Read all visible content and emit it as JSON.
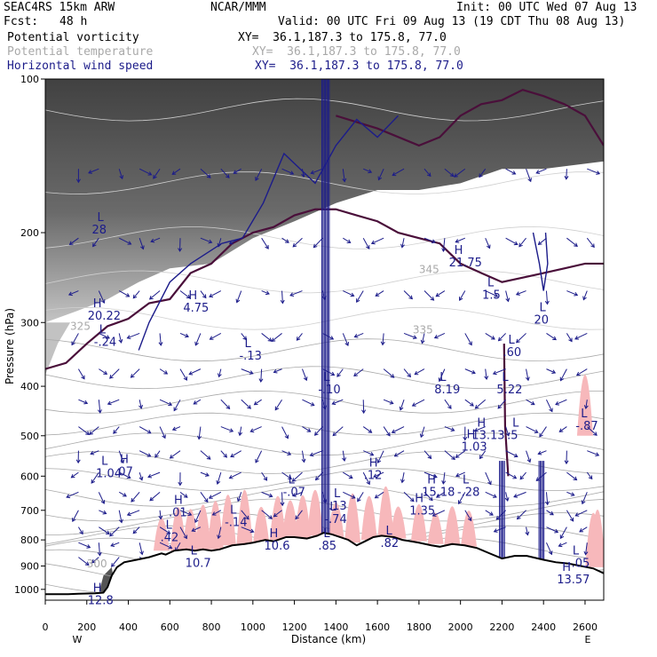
{
  "header": {
    "model": "SEAC4RS 15km ARW",
    "org": "NCAR/MMM",
    "init": "Init: 00 UTC Wed 07 Aug 13",
    "fcst_label": "Fcst:",
    "fcst_value": "48 h",
    "valid": "Valid: 00 UTC Fri 09 Aug 13 (19 CDT Thu 08 Aug 13)",
    "fields": [
      {
        "name": "Potential vorticity",
        "xy": "XY=  36.1,187.3 to 175.8, 77.0"
      },
      {
        "name": "Potential temperature",
        "xy": "XY=  36.1,187.3 to 175.8, 77.0"
      },
      {
        "name": "Horizontal wind speed",
        "xy": "XY=  36.1,187.3 to 175.8, 77.0"
      }
    ]
  },
  "colors": {
    "pv_fill_dark": "#3a3a3a",
    "theta_contour": "#a9a9a9",
    "wind": "#1c1c8a",
    "pv_contour": "#4a0f3a",
    "pink_fill": "#f7b8bb",
    "terrain": "#000000"
  },
  "chart_data": {
    "type": "contour",
    "ylabel": "Pressure (hPa)",
    "xlabel": "Distance (km)",
    "x_ticks": [
      "0",
      "200",
      "400",
      "600",
      "800",
      "1000",
      "1200",
      "1400",
      "1600",
      "1800",
      "2000",
      "2200",
      "2400",
      "2600"
    ],
    "y_ticks": [
      "100",
      "200",
      "300",
      "400",
      "500",
      "600",
      "700",
      "800",
      "900",
      "1000"
    ],
    "xlim": [
      0,
      2690
    ],
    "ylim_pressure": [
      1050,
      100
    ],
    "left_end": "W",
    "right_end": "E",
    "terrain_surface_hPa": [
      [
        0,
        1022
      ],
      [
        110,
        1022
      ],
      [
        160,
        1020
      ],
      [
        240,
        1018
      ],
      [
        280,
        1015
      ],
      [
        300,
        990
      ],
      [
        320,
        940
      ],
      [
        345,
        905
      ],
      [
        380,
        885
      ],
      [
        440,
        875
      ],
      [
        500,
        865
      ],
      [
        560,
        850
      ],
      [
        580,
        855
      ],
      [
        620,
        840
      ],
      [
        680,
        835
      ],
      [
        720,
        840
      ],
      [
        760,
        835
      ],
      [
        800,
        840
      ],
      [
        840,
        835
      ],
      [
        900,
        820
      ],
      [
        960,
        815
      ],
      [
        1000,
        810
      ],
      [
        1060,
        800
      ],
      [
        1100,
        805
      ],
      [
        1160,
        790
      ],
      [
        1200,
        790
      ],
      [
        1260,
        795
      ],
      [
        1310,
        785
      ],
      [
        1340,
        775
      ],
      [
        1380,
        780
      ],
      [
        1420,
        790
      ],
      [
        1460,
        800
      ],
      [
        1500,
        820
      ],
      [
        1540,
        805
      ],
      [
        1580,
        790
      ],
      [
        1620,
        785
      ],
      [
        1680,
        790
      ],
      [
        1720,
        800
      ],
      [
        1760,
        805
      ],
      [
        1800,
        810
      ],
      [
        1860,
        820
      ],
      [
        1900,
        825
      ],
      [
        1960,
        815
      ],
      [
        2020,
        820
      ],
      [
        2080,
        830
      ],
      [
        2140,
        850
      ],
      [
        2200,
        870
      ],
      [
        2260,
        860
      ],
      [
        2320,
        860
      ],
      [
        2400,
        875
      ],
      [
        2460,
        885
      ],
      [
        2520,
        890
      ],
      [
        2580,
        900
      ],
      [
        2640,
        910
      ],
      [
        2690,
        930
      ]
    ],
    "high_low_labels": [
      {
        "t": "L",
        "v": "28",
        "x": 250,
        "p": 190
      },
      {
        "t": "H",
        "v": "20.22",
        "x": 230,
        "p": 280
      },
      {
        "t": "L",
        "v": "-.24",
        "x": 260,
        "p": 315
      },
      {
        "t": "H",
        "v": "4.75",
        "x": 690,
        "p": 270
      },
      {
        "t": "L",
        "v": "-.13",
        "x": 960,
        "p": 335
      },
      {
        "t": "L",
        "v": "-.10",
        "x": 1340,
        "p": 390
      },
      {
        "t": "L",
        "v": "8.19",
        "x": 1900,
        "p": 390
      },
      {
        "t": "L",
        "v": "5.22",
        "x": 2200,
        "p": 390
      },
      {
        "t": "L",
        "v": ".60",
        "x": 2230,
        "p": 330
      },
      {
        "t": "H",
        "v": "21.75",
        "x": 1970,
        "p": 220
      },
      {
        "t": "L",
        "v": "1.5",
        "x": 2130,
        "p": 255
      },
      {
        "t": "H",
        "v": "13.13",
        "x": 2080,
        "p": 480
      },
      {
        "t": "H",
        "v": "1.03",
        "x": 2030,
        "p": 505
      },
      {
        "t": "L",
        "v": ".5",
        "x": 2250,
        "p": 480
      },
      {
        "t": "L",
        "v": "-.87",
        "x": 2580,
        "p": 460
      },
      {
        "t": "L",
        "v": "1.04",
        "x": 270,
        "p": 570
      },
      {
        "t": "H",
        "v": ".07",
        "x": 360,
        "p": 565
      },
      {
        "t": "H",
        "v": ".12",
        "x": 1560,
        "p": 575
      },
      {
        "t": "L",
        "v": "-.07",
        "x": 1170,
        "p": 620
      },
      {
        "t": "H",
        "v": "15.18",
        "x": 1840,
        "p": 620
      },
      {
        "t": "L",
        "v": "-.28",
        "x": 2010,
        "p": 620
      },
      {
        "t": "L",
        "v": ".13",
        "x": 1390,
        "p": 660
      },
      {
        "t": "L",
        "v": "-.74",
        "x": 1370,
        "p": 700
      },
      {
        "t": "H",
        "v": "1.35",
        "x": 1780,
        "p": 675
      },
      {
        "t": "H",
        "v": ".01",
        "x": 620,
        "p": 680
      },
      {
        "t": "L",
        "v": "-.14",
        "x": 890,
        "p": 710
      },
      {
        "t": "L",
        "v": ".42",
        "x": 580,
        "p": 760
      },
      {
        "t": "H",
        "v": "10.6",
        "x": 1080,
        "p": 790
      },
      {
        "t": "L",
        "v": ".82",
        "x": 1640,
        "p": 780
      },
      {
        "t": "L",
        "v": ".85",
        "x": 1340,
        "p": 790
      },
      {
        "t": "L",
        "v": "10.7",
        "x": 700,
        "p": 855
      },
      {
        "t": "L",
        "v": "-.05",
        "x": 2540,
        "p": 855
      },
      {
        "t": "H",
        "v": "13.57",
        "x": 2490,
        "p": 920
      },
      {
        "t": "H",
        "v": "12.8",
        "x": 230,
        "p": 1010
      },
      {
        "t": "L",
        "v": "20",
        "x": 2380,
        "p": 285
      }
    ],
    "theta_labels": [
      {
        "v": "325",
        "x": 120,
        "p": 310
      },
      {
        "v": "335",
        "x": 1770,
        "p": 315
      },
      {
        "v": "300",
        "x": 200,
        "p": 905
      },
      {
        "v": "345",
        "x": 1800,
        "p": 240
      }
    ]
  }
}
